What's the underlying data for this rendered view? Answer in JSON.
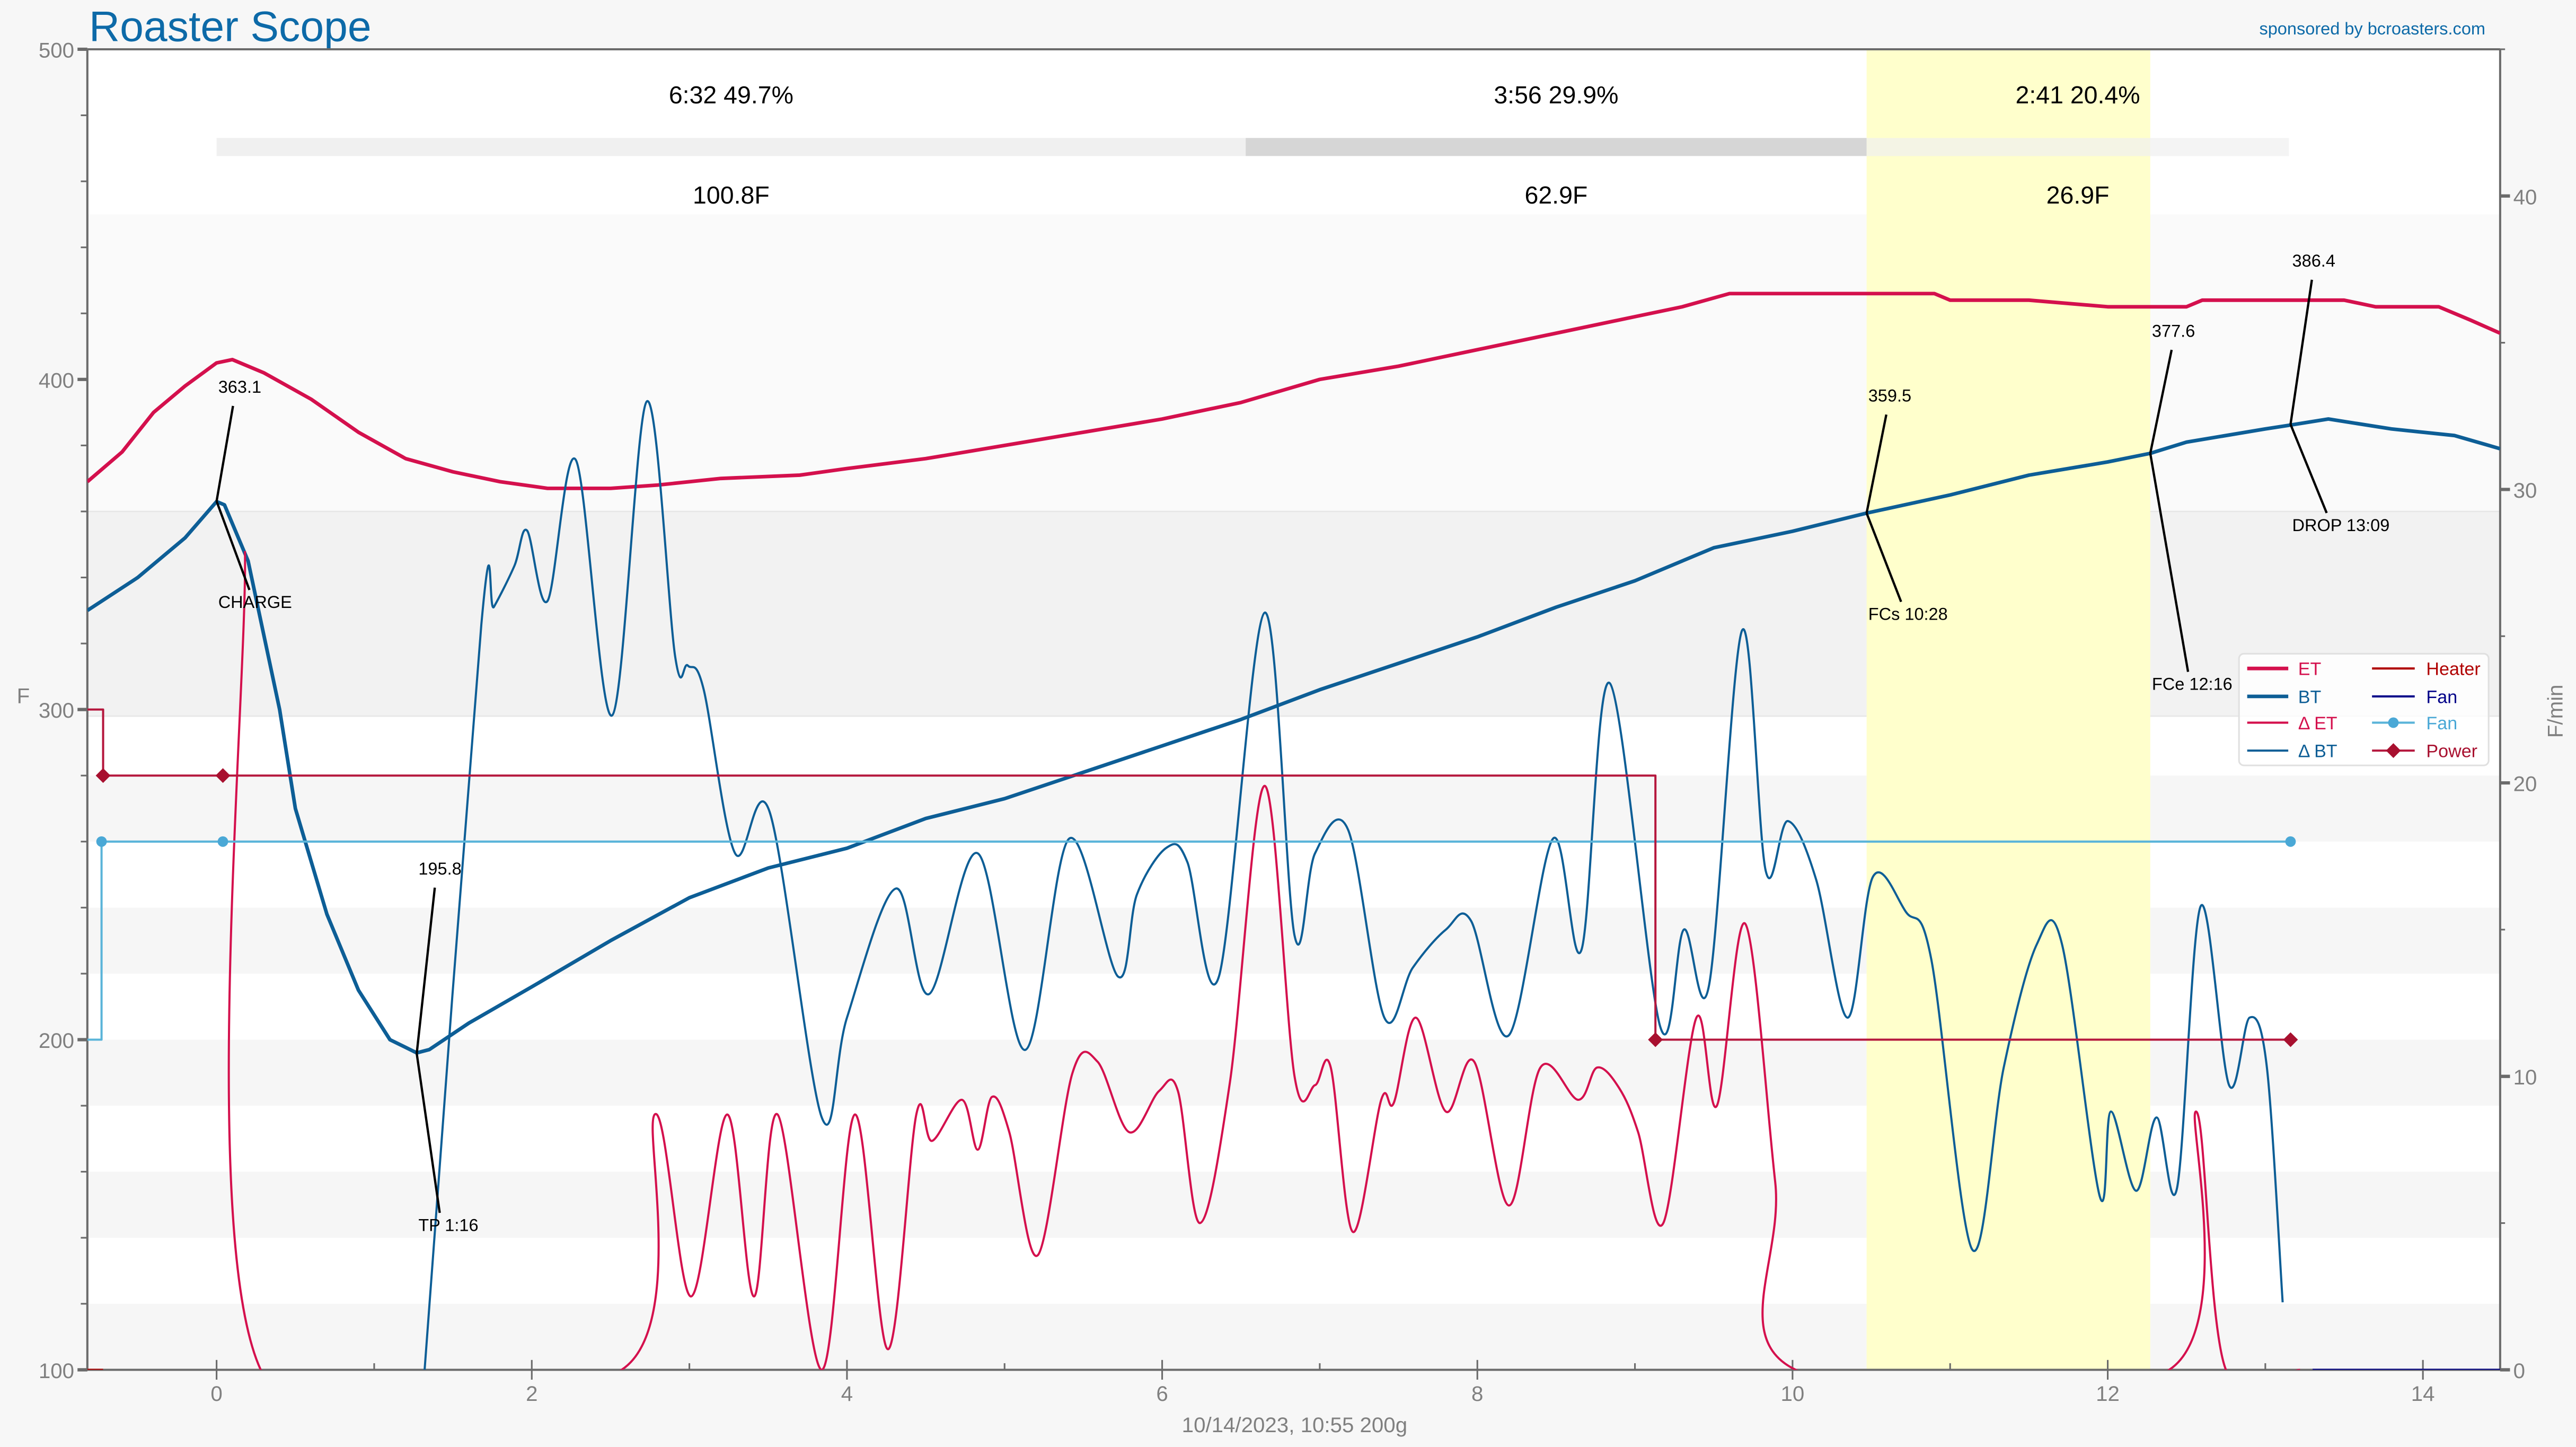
{
  "header": {
    "title": "Roaster Scope",
    "sponsor": "sponsored by bcroasters.com",
    "footer": "10/14/2023, 10:55   200g"
  },
  "phases": [
    {
      "time": "6:32",
      "pct": "49.7%",
      "rise": "100.8F",
      "start": 0,
      "end": 6.53
    },
    {
      "time": "3:56",
      "pct": "29.9%",
      "rise": "62.9F",
      "start": 6.53,
      "end": 10.47
    },
    {
      "time": "2:41",
      "pct": "20.4%",
      "rise": "26.9F",
      "start": 10.47,
      "end": 13.15
    }
  ],
  "colors": {
    "title": "#0d6aa8",
    "highlight_band": "#ffffcc",
    "phase_bar_light": "#f0f0f0",
    "phase_bar_dark": "#d6d6d6"
  },
  "chart_data": {
    "type": "line",
    "xlim": [
      -0.82,
      14.49
    ],
    "ylim_left": [
      100,
      500
    ],
    "ylim_right": [
      0,
      45
    ],
    "ylabel": "F",
    "y2label": "F/min",
    "xticks": [
      0,
      2,
      4,
      6,
      8,
      10,
      12,
      14
    ],
    "yticks": [
      100,
      200,
      300,
      400,
      500
    ],
    "y2ticks": [
      0,
      10,
      20,
      30,
      40
    ],
    "grid": false,
    "legend_position": "right",
    "first_crack_band": [
      10.47,
      12.27
    ],
    "series": [
      {
        "name": "ET",
        "axis": "left",
        "color": "#d4104d",
        "smooth": false,
        "points": [
          [
            -0.82,
            369
          ],
          [
            -0.6,
            378
          ],
          [
            -0.4,
            390
          ],
          [
            -0.2,
            398
          ],
          [
            0,
            405
          ],
          [
            0.1,
            406
          ],
          [
            0.3,
            402
          ],
          [
            0.6,
            394
          ],
          [
            0.9,
            384
          ],
          [
            1.2,
            376
          ],
          [
            1.5,
            372
          ],
          [
            1.8,
            369
          ],
          [
            2.1,
            367
          ],
          [
            2.5,
            367
          ],
          [
            2.8,
            368
          ],
          [
            3.2,
            370
          ],
          [
            3.7,
            371
          ],
          [
            4.0,
            373
          ],
          [
            4.5,
            376
          ],
          [
            5.0,
            380
          ],
          [
            5.5,
            384
          ],
          [
            6.0,
            388
          ],
          [
            6.5,
            393
          ],
          [
            7.0,
            400
          ],
          [
            7.5,
            404
          ],
          [
            8.0,
            409
          ],
          [
            8.5,
            414
          ],
          [
            9.0,
            419
          ],
          [
            9.3,
            422
          ],
          [
            9.6,
            426
          ],
          [
            10.0,
            426
          ],
          [
            10.5,
            426
          ],
          [
            10.9,
            426
          ],
          [
            11.0,
            424
          ],
          [
            11.5,
            424
          ],
          [
            12.0,
            422
          ],
          [
            12.5,
            422
          ],
          [
            12.6,
            424
          ],
          [
            13.5,
            424
          ],
          [
            13.7,
            422
          ],
          [
            14.1,
            422
          ],
          [
            14.3,
            418
          ],
          [
            14.49,
            414
          ]
        ]
      },
      {
        "name": "BT",
        "axis": "left",
        "color": "#0d5e96",
        "smooth": false,
        "points": [
          [
            -0.82,
            330
          ],
          [
            -0.5,
            340
          ],
          [
            -0.2,
            352
          ],
          [
            0,
            363
          ],
          [
            0.05,
            362
          ],
          [
            0.2,
            345
          ],
          [
            0.4,
            300
          ],
          [
            0.5,
            270
          ],
          [
            0.7,
            238
          ],
          [
            0.9,
            215
          ],
          [
            1.1,
            200
          ],
          [
            1.27,
            196
          ],
          [
            1.35,
            197
          ],
          [
            1.6,
            205
          ],
          [
            2.0,
            216
          ],
          [
            2.5,
            230
          ],
          [
            3.0,
            243
          ],
          [
            3.5,
            252
          ],
          [
            4.0,
            258
          ],
          [
            4.5,
            267
          ],
          [
            5.0,
            273
          ],
          [
            5.5,
            281
          ],
          [
            6.0,
            289
          ],
          [
            6.5,
            297
          ],
          [
            7.0,
            306
          ],
          [
            7.5,
            314
          ],
          [
            8.0,
            322
          ],
          [
            8.5,
            331
          ],
          [
            9.0,
            339
          ],
          [
            9.5,
            349
          ],
          [
            10.0,
            354
          ],
          [
            10.47,
            359.5
          ],
          [
            11.0,
            365
          ],
          [
            11.5,
            371
          ],
          [
            12.0,
            375
          ],
          [
            12.27,
            377.6
          ],
          [
            12.5,
            381
          ],
          [
            13.0,
            385
          ],
          [
            13.19,
            386.4
          ],
          [
            13.4,
            388
          ],
          [
            13.8,
            385
          ],
          [
            14.2,
            383
          ],
          [
            14.49,
            379
          ]
        ]
      },
      {
        "name": "Δ ET",
        "axis": "right",
        "color": "#d4104d",
        "smooth": true,
        "points": [
          [
            0.18,
            27.9
          ],
          [
            0.28,
            0
          ],
          [
            2.57,
            0
          ],
          [
            2.78,
            8.7
          ],
          [
            3.01,
            2.5
          ],
          [
            3.24,
            8.7
          ],
          [
            3.41,
            2.5
          ],
          [
            3.56,
            8.7
          ],
          [
            3.84,
            0
          ],
          [
            4.05,
            8.7
          ],
          [
            4.26,
            0.7
          ],
          [
            4.44,
            8.7
          ],
          [
            4.54,
            7.8
          ],
          [
            4.73,
            9.2
          ],
          [
            4.83,
            7.5
          ],
          [
            4.92,
            9.3
          ],
          [
            5.03,
            8.1
          ],
          [
            5.21,
            3.9
          ],
          [
            5.43,
            10.1
          ],
          [
            5.59,
            10.5
          ],
          [
            5.79,
            8.1
          ],
          [
            5.98,
            9.5
          ],
          [
            6.1,
            9.5
          ],
          [
            6.24,
            5.0
          ],
          [
            6.43,
            9.8
          ],
          [
            6.65,
            19.9
          ],
          [
            6.84,
            10.0
          ],
          [
            6.97,
            9.7
          ],
          [
            7.07,
            10.3
          ],
          [
            7.21,
            4.7
          ],
          [
            7.39,
            9.2
          ],
          [
            7.47,
            9.1
          ],
          [
            7.61,
            12.0
          ],
          [
            7.8,
            8.8
          ],
          [
            7.98,
            10.5
          ],
          [
            8.2,
            5.6
          ],
          [
            8.4,
            10.3
          ],
          [
            8.64,
            9.2
          ],
          [
            8.76,
            10.3
          ],
          [
            8.9,
            9.6
          ],
          [
            9.02,
            8.1
          ],
          [
            9.18,
            5.0
          ],
          [
            9.39,
            12.0
          ],
          [
            9.52,
            9.0
          ],
          [
            9.7,
            15.2
          ],
          [
            9.89,
            6.4
          ],
          [
            10.02,
            0
          ],
          [
            12.39,
            0
          ],
          [
            12.56,
            8.8
          ],
          [
            12.75,
            0
          ],
          [
            13.22,
            0
          ]
        ]
      },
      {
        "name": "Δ BT",
        "axis": "right",
        "color": "#0d5e96",
        "smooth": true,
        "points": [
          [
            1.32,
            0
          ],
          [
            1.68,
            25.4
          ],
          [
            1.76,
            26.0
          ],
          [
            1.89,
            27.4
          ],
          [
            1.97,
            28.6
          ],
          [
            2.1,
            26.2
          ],
          [
            2.28,
            31.0
          ],
          [
            2.51,
            22.3
          ],
          [
            2.73,
            33.0
          ],
          [
            2.91,
            24.3
          ],
          [
            2.99,
            24.0
          ],
          [
            3.09,
            23.2
          ],
          [
            3.29,
            17.6
          ],
          [
            3.51,
            19.0
          ],
          [
            3.84,
            8.6
          ],
          [
            4.0,
            12.0
          ],
          [
            4.31,
            16.4
          ],
          [
            4.52,
            12.8
          ],
          [
            4.83,
            17.6
          ],
          [
            5.13,
            10.9
          ],
          [
            5.41,
            18.1
          ],
          [
            5.72,
            13.4
          ],
          [
            5.84,
            16.2
          ],
          [
            6.03,
            17.8
          ],
          [
            6.16,
            17.3
          ],
          [
            6.36,
            13.4
          ],
          [
            6.65,
            25.8
          ],
          [
            6.84,
            14.8
          ],
          [
            6.97,
            17.6
          ],
          [
            7.18,
            18.4
          ],
          [
            7.41,
            12.0
          ],
          [
            7.59,
            13.7
          ],
          [
            7.8,
            15.0
          ],
          [
            7.96,
            15.3
          ],
          [
            8.2,
            11.4
          ],
          [
            8.48,
            18.1
          ],
          [
            8.66,
            14.3
          ],
          [
            8.84,
            23.4
          ],
          [
            9.16,
            11.7
          ],
          [
            9.31,
            15.0
          ],
          [
            9.47,
            13.1
          ],
          [
            9.68,
            25.2
          ],
          [
            9.83,
            17.0
          ],
          [
            9.97,
            18.7
          ],
          [
            10.15,
            16.7
          ],
          [
            10.35,
            12.0
          ],
          [
            10.51,
            16.8
          ],
          [
            10.72,
            15.6
          ],
          [
            10.88,
            14.0
          ],
          [
            11.14,
            4.1
          ],
          [
            11.34,
            10.3
          ],
          [
            11.55,
            14.5
          ],
          [
            11.71,
            14.5
          ],
          [
            11.95,
            5.9
          ],
          [
            12.02,
            8.8
          ],
          [
            12.18,
            6.1
          ],
          [
            12.31,
            8.6
          ],
          [
            12.44,
            6.2
          ],
          [
            12.59,
            15.8
          ],
          [
            12.77,
            9.7
          ],
          [
            12.9,
            12.0
          ],
          [
            13.01,
            10.3
          ],
          [
            13.11,
            2.3
          ]
        ]
      },
      {
        "name": "Heater",
        "axis": "left",
        "color": "#b00000",
        "smooth": false,
        "points": [
          [
            -0.82,
            100
          ],
          [
            -0.72,
            100
          ]
        ]
      },
      {
        "name": "Fan",
        "axis": "left",
        "color": "#000088",
        "smooth": false,
        "points": [
          [
            13.3,
            100
          ],
          [
            14.49,
            100
          ]
        ]
      },
      {
        "name": "Fan",
        "axis": "left",
        "color": "#5ab4d9",
        "smooth": false,
        "marker": "circle",
        "points": [
          [
            -0.82,
            200
          ],
          [
            -0.73,
            200
          ],
          [
            -0.73,
            260
          ],
          [
            13.16,
            260
          ]
        ],
        "markers": [
          [
            -0.73,
            260
          ],
          [
            0.04,
            260
          ],
          [
            13.16,
            260
          ]
        ]
      },
      {
        "name": "Power",
        "axis": "left",
        "color": "#b5173d",
        "smooth": false,
        "marker": "diamond",
        "points": [
          [
            -0.82,
            300
          ],
          [
            -0.72,
            300
          ],
          [
            -0.72,
            280
          ],
          [
            9.13,
            280
          ],
          [
            9.13,
            200
          ],
          [
            13.16,
            200
          ]
        ],
        "markers": [
          [
            -0.72,
            280
          ],
          [
            0.04,
            280
          ],
          [
            9.13,
            200
          ],
          [
            13.16,
            200
          ]
        ]
      }
    ],
    "events": [
      {
        "label": "CHARGE",
        "value": "363.1",
        "t": 0,
        "temp": 363.1
      },
      {
        "label": "TP 1:16",
        "value": "195.8",
        "t": 1.27,
        "temp": 195.8
      },
      {
        "label": "FCs 10:28",
        "value": "359.5",
        "t": 10.47,
        "temp": 359.5
      },
      {
        "label": "FCe 12:16",
        "value": "377.6",
        "t": 12.27,
        "temp": 377.6
      },
      {
        "label": "DROP 13:09",
        "value": "386.4",
        "t": 13.16,
        "temp": 386.4
      }
    ]
  }
}
